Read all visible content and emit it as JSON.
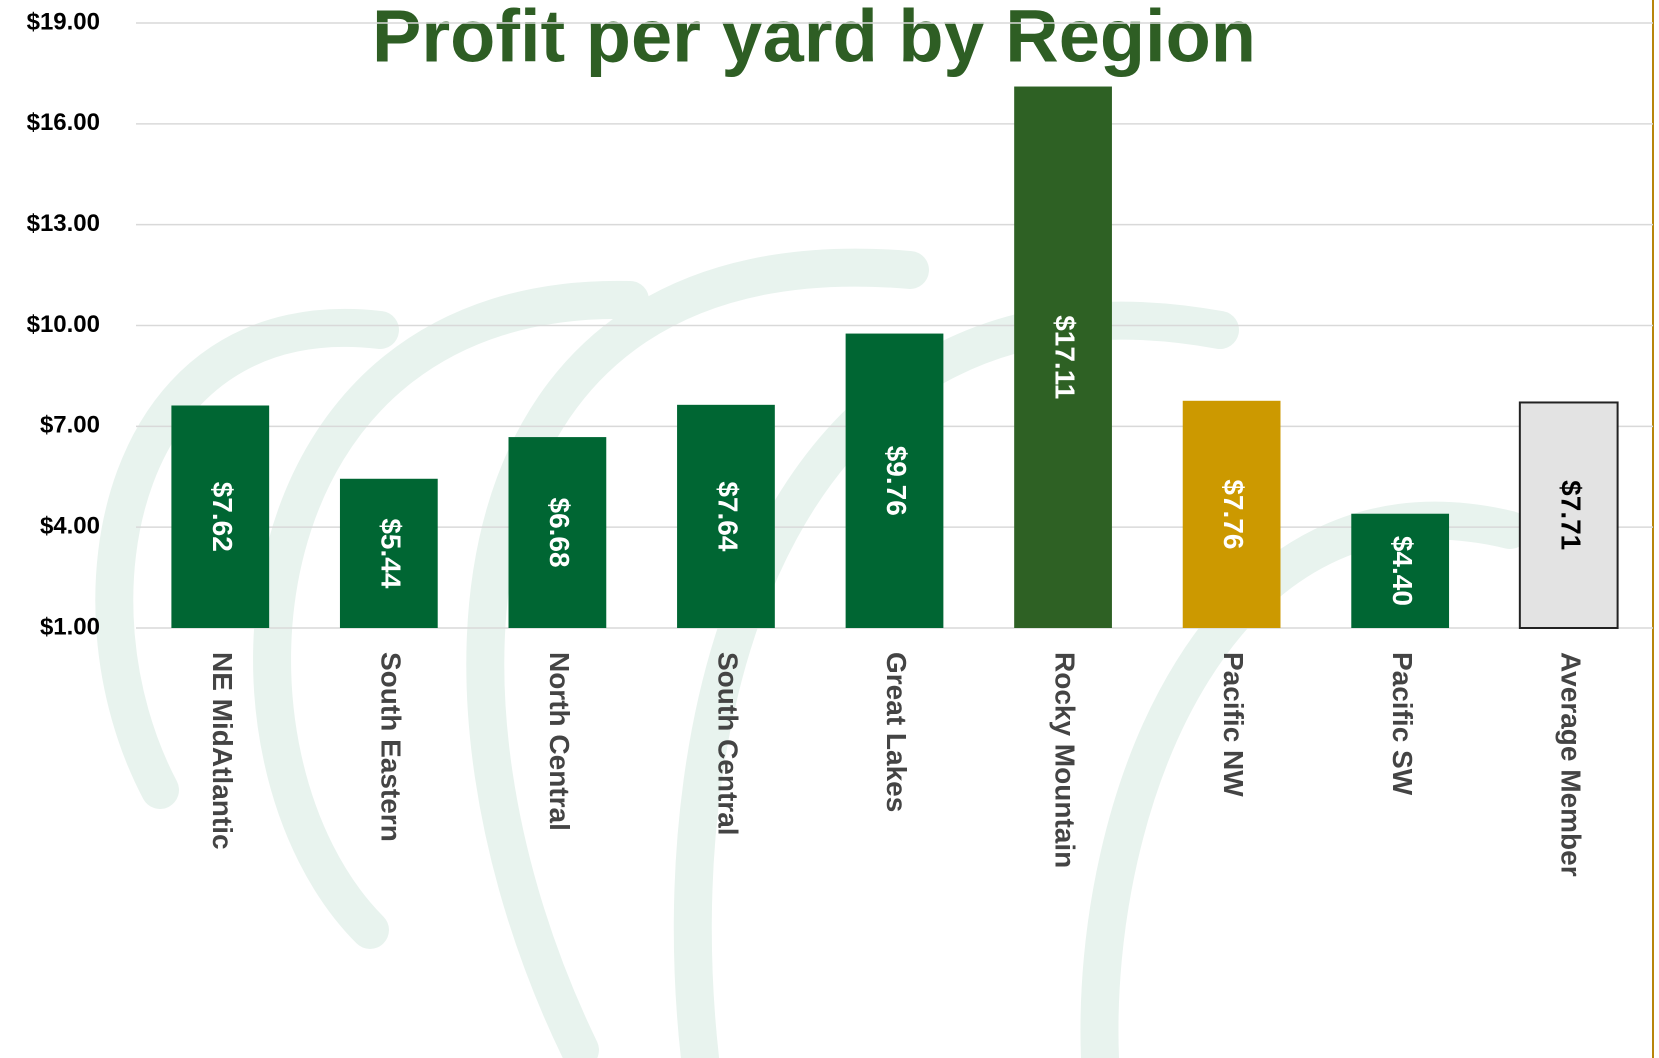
{
  "chart_data": {
    "type": "bar",
    "title": "Profit per yard by Region",
    "categories": [
      "NE MidAtlantic",
      "South Eastern",
      "North Central",
      "South Central",
      "Great Lakes",
      "Rocky Mountain",
      "Pacific NW",
      "Pacific SW",
      "Average Member"
    ],
    "values": [
      7.62,
      5.44,
      6.68,
      7.64,
      9.76,
      17.11,
      7.76,
      4.4,
      7.71
    ],
    "value_labels": [
      "$7.62",
      "$5.44",
      "$6.68",
      "$7.64",
      "$9.76",
      "$17.11",
      "$7.76",
      "$4.40",
      "$7.71"
    ],
    "colors": [
      "#006633",
      "#006633",
      "#006633",
      "#006633",
      "#006633",
      "#2e6124",
      "#cc9900",
      "#006633",
      "#e3e3e3"
    ],
    "label_colors": [
      "#ffffff",
      "#ffffff",
      "#ffffff",
      "#ffffff",
      "#ffffff",
      "#ffffff",
      "#ffffff",
      "#ffffff",
      "#000000"
    ],
    "ylim": [
      1,
      19
    ],
    "yticks": [
      {
        "value": 1,
        "label": "$1.00"
      },
      {
        "value": 4,
        "label": "$4.00"
      },
      {
        "value": 7,
        "label": "$7.00"
      },
      {
        "value": 10,
        "label": "$10.00"
      },
      {
        "value": 13,
        "label": "$13.00"
      },
      {
        "value": 16,
        "label": "$16.00"
      },
      {
        "value": 19,
        "label": "$19.00"
      }
    ],
    "grid": true
  }
}
